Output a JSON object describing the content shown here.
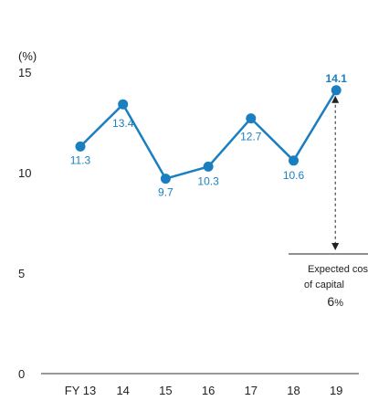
{
  "chart_data": {
    "type": "line",
    "ylabel": "(%)",
    "ylim": [
      0,
      15
    ],
    "yticks": [
      "0",
      "5",
      "10",
      "15"
    ],
    "categories": [
      "FY 13",
      "14",
      "15",
      "16",
      "17",
      "18",
      "19"
    ],
    "series": [
      {
        "values": [
          11.3,
          13.4,
          9.7,
          10.3,
          12.7,
          10.6,
          14.1
        ],
        "labels": [
          "11.3",
          "13.4",
          "9.7",
          "10.3",
          "12.7",
          "10.6",
          "14.1"
        ]
      }
    ],
    "annotation": {
      "line1": "Expected cos",
      "line2": "of capital",
      "value": "6",
      "unit": "%",
      "from": 14.1,
      "to": 6
    },
    "colors": {
      "line": "#1a7fc1",
      "axis": "#333333",
      "annotation": "#222222"
    }
  }
}
